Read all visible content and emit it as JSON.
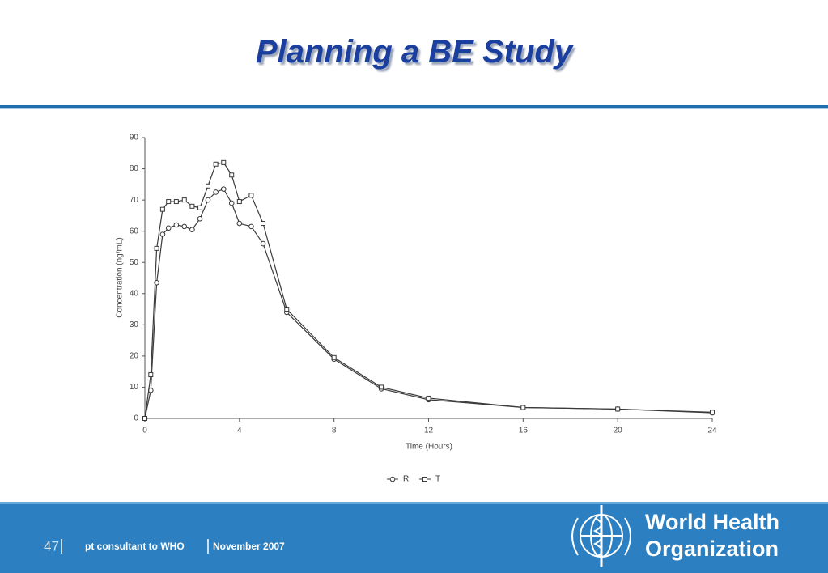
{
  "header": {
    "title": "Planning a BE Study"
  },
  "chart_data": {
    "type": "line",
    "x_label": "Time (Hours)",
    "y_label": "Concentration (ng/mL)",
    "x": [
      0,
      0.25,
      0.5,
      0.75,
      1,
      1.33,
      1.67,
      2,
      2.33,
      2.67,
      3,
      3.33,
      3.67,
      4,
      4.5,
      5,
      6,
      8,
      10,
      12,
      16,
      20,
      24
    ],
    "series": [
      {
        "name": "R",
        "color": "#3a3a3a",
        "marker": "circle",
        "values": [
          0,
          9,
          43.5,
          59,
          61,
          62,
          61.5,
          60.5,
          64,
          70,
          72.5,
          73.5,
          69,
          62.5,
          61.5,
          56,
          34,
          19,
          9.5,
          6,
          3.5,
          3,
          1.8
        ]
      },
      {
        "name": "T",
        "color": "#3a3a3a",
        "marker": "square",
        "values": [
          0,
          14,
          54.5,
          67,
          69.5,
          69.5,
          70,
          68,
          67.5,
          74.5,
          81.5,
          82,
          78,
          69.5,
          71.5,
          62.5,
          35,
          19.5,
          10,
          6.5,
          3.5,
          3,
          2
        ]
      }
    ],
    "xlim": [
      0,
      24
    ],
    "xticks": [
      0,
      4,
      8,
      12,
      16,
      20,
      24
    ],
    "ylim": [
      0,
      90
    ],
    "yticks": [
      0,
      10,
      20,
      30,
      40,
      50,
      60,
      70,
      80,
      90
    ],
    "legend": "bottom"
  },
  "footer": {
    "page": "47",
    "author": "pt consultant to WHO",
    "date": "November 2007",
    "logo": [
      "World Health",
      "Organization"
    ]
  }
}
